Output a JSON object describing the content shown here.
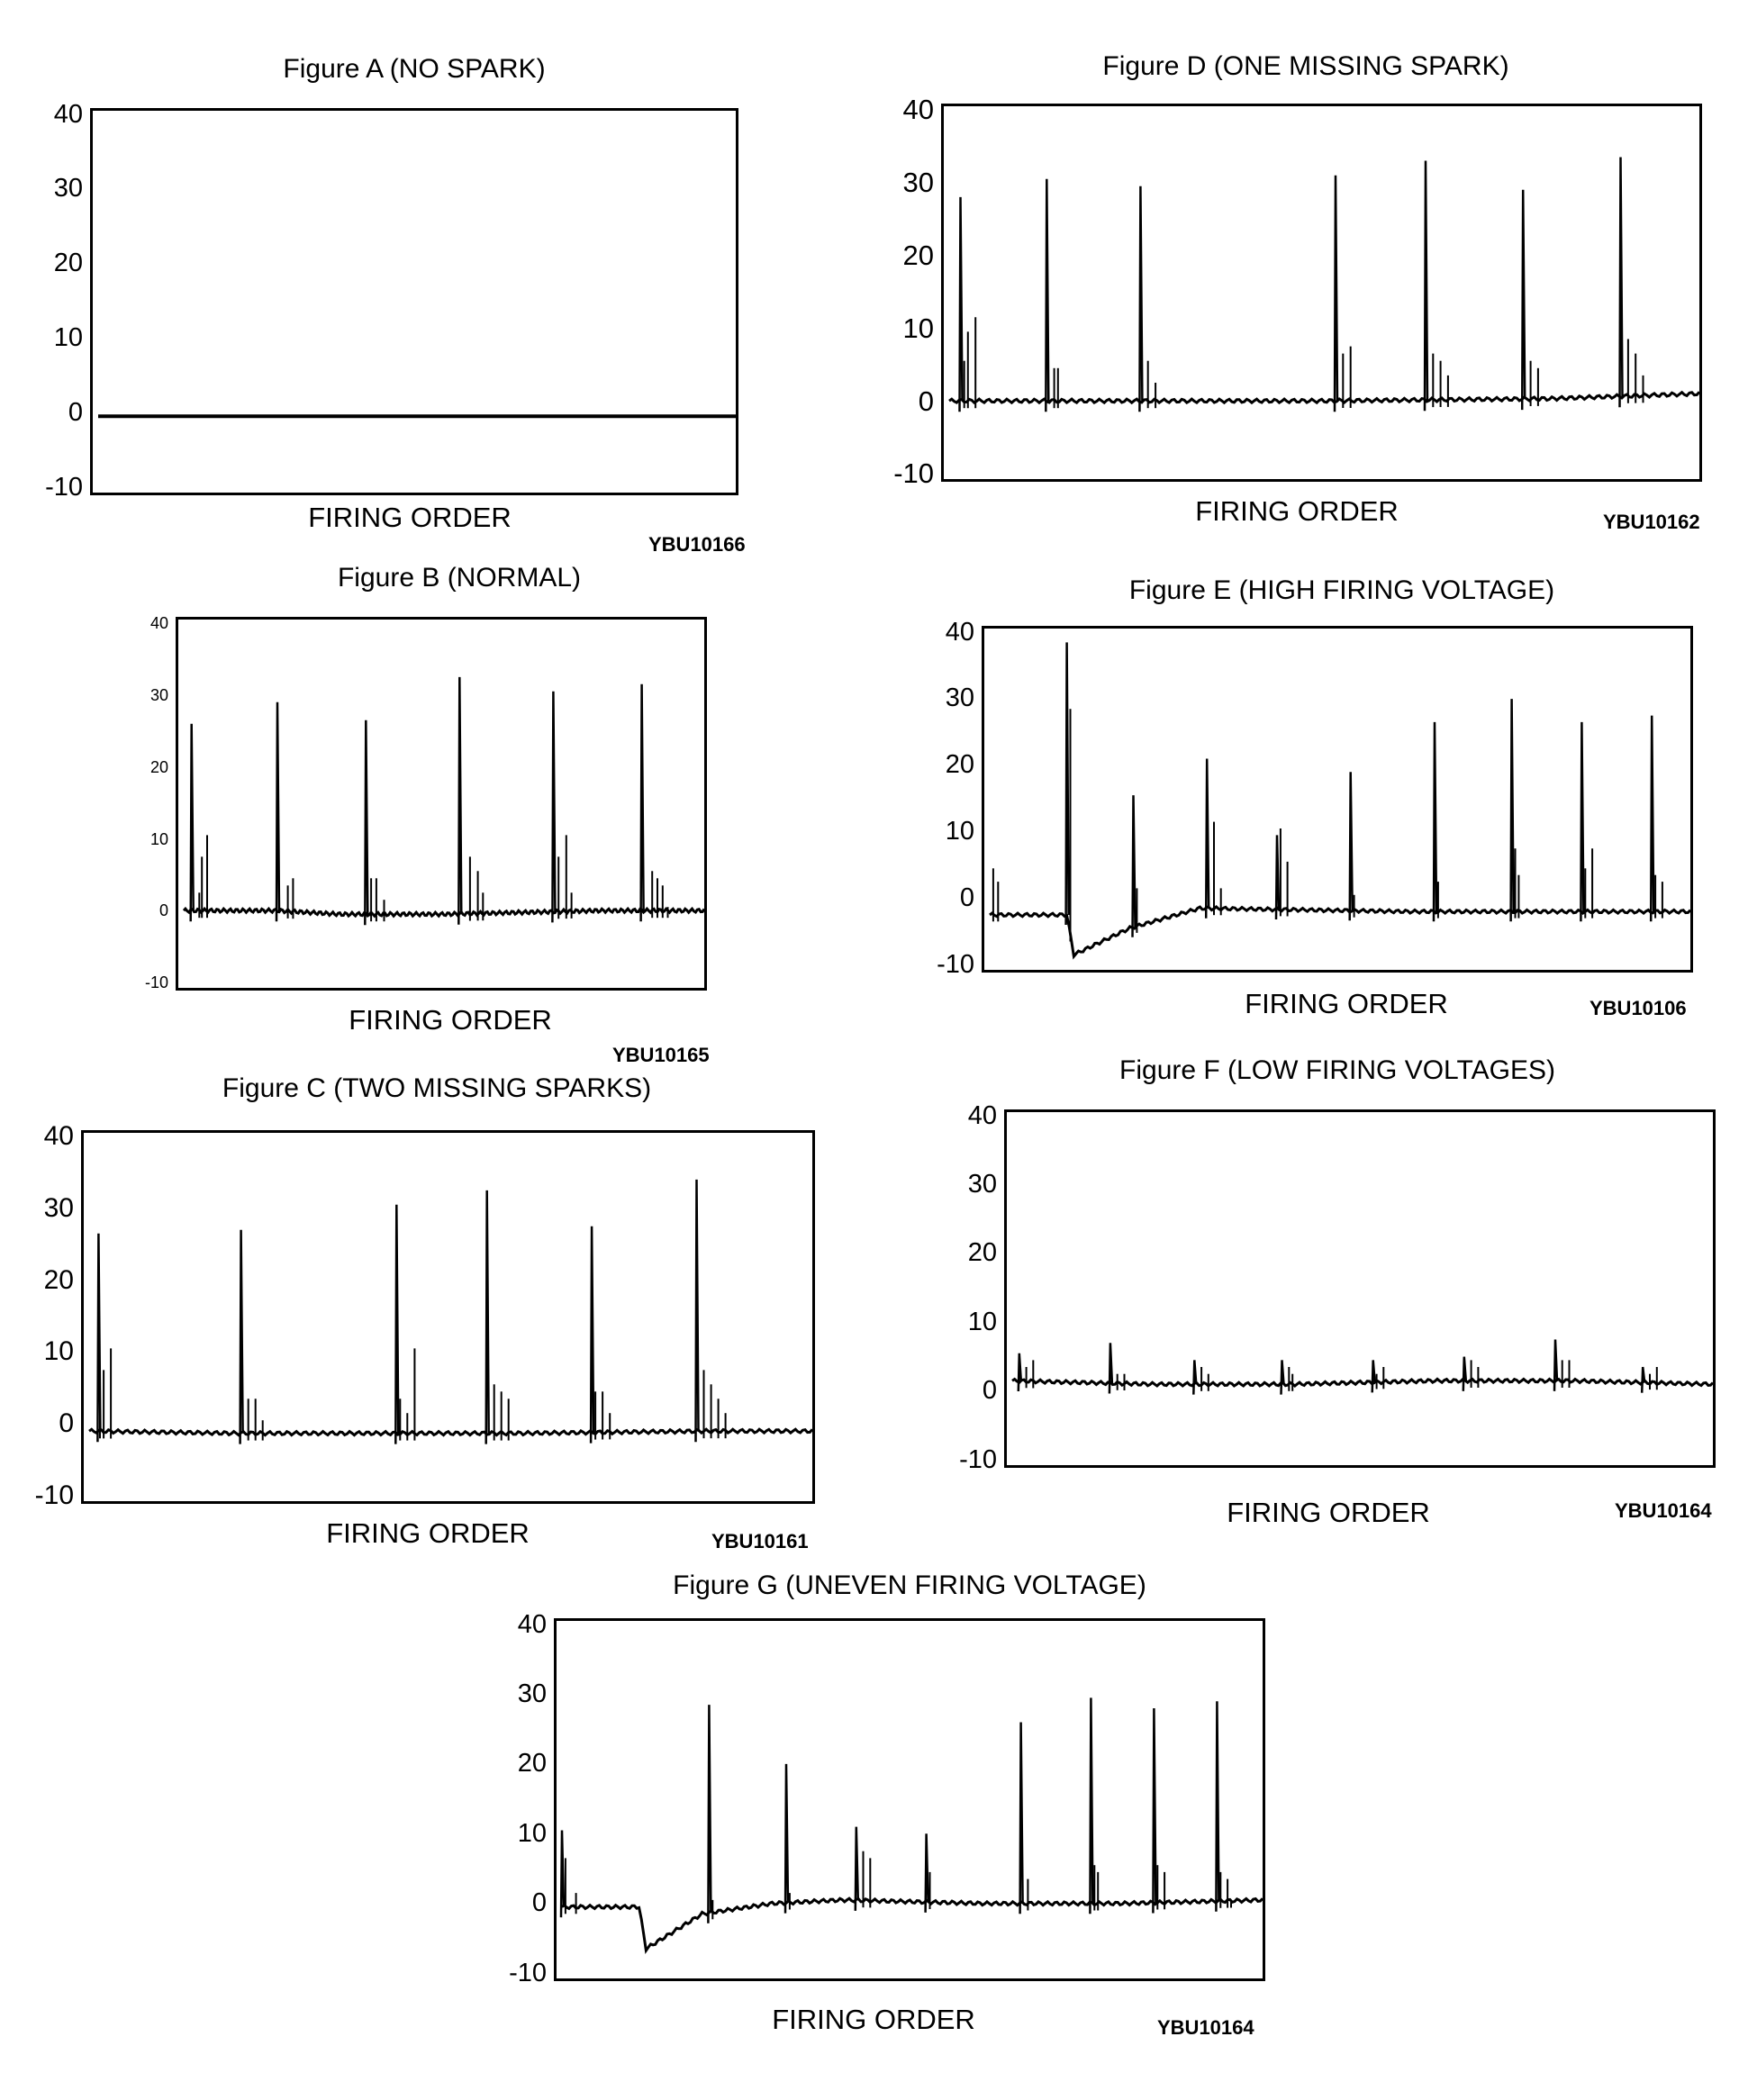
{
  "chart_data": [
    {
      "id": "A",
      "type": "line",
      "title": "Figure A (NO SPARK)",
      "xlabel": "FIRING ORDER",
      "code": "YBU10166",
      "ylim": [
        -10,
        40
      ],
      "yticks": [
        "40",
        "30",
        "20",
        "10",
        "0",
        "-10"
      ],
      "baseline": [
        [
          0.0,
          0
        ],
        [
          1.0,
          0
        ]
      ],
      "spikes": [],
      "noise": []
    },
    {
      "id": "B",
      "type": "line",
      "title": "Figure B (NORMAL)",
      "xlabel": "FIRING ORDER",
      "code": "YBU10165",
      "ylim": [
        -10,
        40
      ],
      "yticks": [
        "40",
        "30",
        "20",
        "10",
        "0",
        "-10"
      ],
      "baseline": [
        [
          0.0,
          0.5
        ],
        [
          0.18,
          0.5
        ],
        [
          0.3,
          0
        ],
        [
          0.5,
          0
        ],
        [
          0.8,
          0.5
        ],
        [
          1.0,
          0.5
        ]
      ],
      "spikes": [
        [
          0.015,
          26.5
        ],
        [
          0.18,
          29.5
        ],
        [
          0.35,
          27
        ],
        [
          0.53,
          33
        ],
        [
          0.71,
          31
        ],
        [
          0.88,
          32
        ]
      ],
      "noise": [
        [
          0.035,
          8
        ],
        [
          0.045,
          11
        ],
        [
          0.03,
          3
        ],
        [
          0.2,
          4
        ],
        [
          0.21,
          5
        ],
        [
          0.36,
          5
        ],
        [
          0.37,
          5
        ],
        [
          0.385,
          2
        ],
        [
          0.55,
          8
        ],
        [
          0.565,
          6
        ],
        [
          0.575,
          3
        ],
        [
          0.72,
          8
        ],
        [
          0.735,
          11
        ],
        [
          0.745,
          3
        ],
        [
          0.9,
          6
        ],
        [
          0.91,
          5
        ],
        [
          0.92,
          4
        ],
        [
          0.93,
          1
        ]
      ]
    },
    {
      "id": "C",
      "type": "line",
      "title": "Figure C (TWO MISSING SPARKS)",
      "xlabel": "FIRING ORDER",
      "code": "YBU10161",
      "ylim": [
        -10,
        40
      ],
      "yticks": [
        "40",
        "30",
        "20",
        "10",
        "0",
        "-10"
      ],
      "baseline": [
        [
          0.0,
          -0.5
        ],
        [
          0.2,
          -0.8
        ],
        [
          0.35,
          -0.8
        ],
        [
          0.6,
          -0.8
        ],
        [
          0.85,
          -0.5
        ],
        [
          1.0,
          -0.5
        ]
      ],
      "spikes": [
        [
          0.013,
          27
        ],
        [
          0.21,
          27.5
        ],
        [
          0.425,
          31
        ],
        [
          0.55,
          33
        ],
        [
          0.695,
          28
        ],
        [
          0.84,
          34.5
        ]
      ],
      "noise": [
        [
          0.02,
          8
        ],
        [
          0.03,
          11
        ],
        [
          0.015,
          4
        ],
        [
          0.22,
          4
        ],
        [
          0.23,
          4
        ],
        [
          0.24,
          1
        ],
        [
          0.43,
          4
        ],
        [
          0.45,
          11
        ],
        [
          0.44,
          2
        ],
        [
          0.56,
          6
        ],
        [
          0.57,
          5
        ],
        [
          0.58,
          4
        ],
        [
          0.7,
          5
        ],
        [
          0.71,
          5
        ],
        [
          0.72,
          2
        ],
        [
          0.85,
          8
        ],
        [
          0.86,
          6
        ],
        [
          0.87,
          4
        ],
        [
          0.88,
          2
        ]
      ]
    },
    {
      "id": "D",
      "type": "line",
      "title": "Figure D (ONE MISSING SPARK)",
      "xlabel": "FIRING ORDER",
      "code": "YBU10162",
      "ylim": [
        -10,
        40
      ],
      "yticks": [
        "40",
        "30",
        "20",
        "10",
        "0",
        "-10"
      ],
      "baseline": [
        [
          0.0,
          0.5
        ],
        [
          0.3,
          0.5
        ],
        [
          0.5,
          0.5
        ],
        [
          0.8,
          0.8
        ],
        [
          1.0,
          1.5
        ]
      ],
      "spikes": [
        [
          0.015,
          28.5
        ],
        [
          0.13,
          31
        ],
        [
          0.255,
          30
        ],
        [
          0.515,
          31.5
        ],
        [
          0.635,
          33.5
        ],
        [
          0.765,
          29.5
        ],
        [
          0.895,
          34
        ]
      ],
      "noise": [
        [
          0.02,
          6
        ],
        [
          0.025,
          10
        ],
        [
          0.035,
          12
        ],
        [
          0.14,
          5
        ],
        [
          0.145,
          5
        ],
        [
          0.265,
          6
        ],
        [
          0.275,
          3
        ],
        [
          0.525,
          7
        ],
        [
          0.535,
          8
        ],
        [
          0.645,
          7
        ],
        [
          0.655,
          6
        ],
        [
          0.665,
          4
        ],
        [
          0.775,
          6
        ],
        [
          0.785,
          5
        ],
        [
          0.905,
          9
        ],
        [
          0.915,
          7
        ],
        [
          0.925,
          4
        ]
      ]
    },
    {
      "id": "E",
      "type": "line",
      "title": "Figure E (HIGH FIRING VOLTAGE)",
      "xlabel": "FIRING ORDER",
      "code": "YBU10106",
      "ylim": [
        -10,
        40
      ],
      "yticks": [
        "40",
        "30",
        "20",
        "10",
        "0",
        "-10"
      ],
      "baseline": [
        [
          0.0,
          -2
        ],
        [
          0.11,
          -2
        ],
        [
          0.12,
          -8
        ],
        [
          0.2,
          -4
        ],
        [
          0.3,
          -1
        ],
        [
          0.6,
          -1.5
        ],
        [
          0.8,
          -1.5
        ],
        [
          1.0,
          -1.5
        ]
      ],
      "spikes": [
        [
          0.11,
          39
        ],
        [
          0.205,
          16
        ],
        [
          0.31,
          21.5
        ],
        [
          0.41,
          10
        ],
        [
          0.515,
          19.5
        ],
        [
          0.635,
          27
        ],
        [
          0.745,
          30.5
        ],
        [
          0.845,
          27
        ],
        [
          0.945,
          28
        ]
      ],
      "noise": [
        [
          0.005,
          5
        ],
        [
          0.012,
          3
        ],
        [
          0.115,
          29
        ],
        [
          0.21,
          2
        ],
        [
          0.32,
          12
        ],
        [
          0.33,
          2
        ],
        [
          0.415,
          11
        ],
        [
          0.425,
          6
        ],
        [
          0.52,
          1
        ],
        [
          0.64,
          3
        ],
        [
          0.75,
          8
        ],
        [
          0.755,
          4
        ],
        [
          0.85,
          5
        ],
        [
          0.86,
          8
        ],
        [
          0.95,
          4
        ],
        [
          0.96,
          3
        ]
      ]
    },
    {
      "id": "F",
      "type": "line",
      "title": "Figure F (LOW FIRING VOLTAGES)",
      "xlabel": "FIRING ORDER",
      "code": "YBU10164",
      "ylim": [
        -10,
        40
      ],
      "yticks": [
        "40",
        "30",
        "20",
        "10",
        "0",
        "-10"
      ],
      "baseline": [
        [
          0.0,
          2
        ],
        [
          0.2,
          1.5
        ],
        [
          0.4,
          1.5
        ],
        [
          0.6,
          2
        ],
        [
          0.8,
          2
        ],
        [
          1.0,
          1.5
        ]
      ],
      "spikes": [
        [
          0.01,
          6
        ],
        [
          0.14,
          7.5
        ],
        [
          0.26,
          5
        ],
        [
          0.385,
          5
        ],
        [
          0.515,
          5
        ],
        [
          0.645,
          5.5
        ],
        [
          0.775,
          8
        ],
        [
          0.9,
          4
        ]
      ],
      "noise": [
        [
          0.02,
          4
        ],
        [
          0.03,
          5
        ],
        [
          0.15,
          3
        ],
        [
          0.16,
          3
        ],
        [
          0.27,
          4
        ],
        [
          0.28,
          3
        ],
        [
          0.395,
          4
        ],
        [
          0.4,
          3
        ],
        [
          0.52,
          3
        ],
        [
          0.53,
          4
        ],
        [
          0.655,
          5
        ],
        [
          0.665,
          4
        ],
        [
          0.785,
          5
        ],
        [
          0.795,
          5
        ],
        [
          0.91,
          3
        ],
        [
          0.92,
          4
        ]
      ]
    },
    {
      "id": "G",
      "type": "line",
      "title": "Figure G (UNEVEN FIRING VOLTAGE)",
      "xlabel": "FIRING ORDER",
      "code": "YBU10164",
      "ylim": [
        -10,
        40
      ],
      "yticks": [
        "40",
        "30",
        "20",
        "10",
        "0",
        "-10"
      ],
      "baseline": [
        [
          0.0,
          0
        ],
        [
          0.11,
          0
        ],
        [
          0.12,
          -6
        ],
        [
          0.2,
          -1
        ],
        [
          0.3,
          0.5
        ],
        [
          0.4,
          1
        ],
        [
          0.6,
          0.5
        ],
        [
          0.8,
          0.5
        ],
        [
          1.0,
          1
        ]
      ],
      "spikes": [
        [
          0.0,
          11
        ],
        [
          0.21,
          29
        ],
        [
          0.32,
          20.5
        ],
        [
          0.42,
          11.5
        ],
        [
          0.52,
          10.5
        ],
        [
          0.655,
          26.5
        ],
        [
          0.755,
          30
        ],
        [
          0.845,
          28.5
        ],
        [
          0.935,
          29.5
        ]
      ],
      "noise": [
        [
          0.005,
          7
        ],
        [
          0.02,
          2
        ],
        [
          0.215,
          1
        ],
        [
          0.325,
          2
        ],
        [
          0.43,
          8
        ],
        [
          0.44,
          7
        ],
        [
          0.525,
          5
        ],
        [
          0.665,
          4
        ],
        [
          0.76,
          6
        ],
        [
          0.765,
          5
        ],
        [
          0.85,
          6
        ],
        [
          0.86,
          5
        ],
        [
          0.94,
          5
        ],
        [
          0.95,
          4
        ],
        [
          0.955,
          1
        ]
      ]
    }
  ]
}
